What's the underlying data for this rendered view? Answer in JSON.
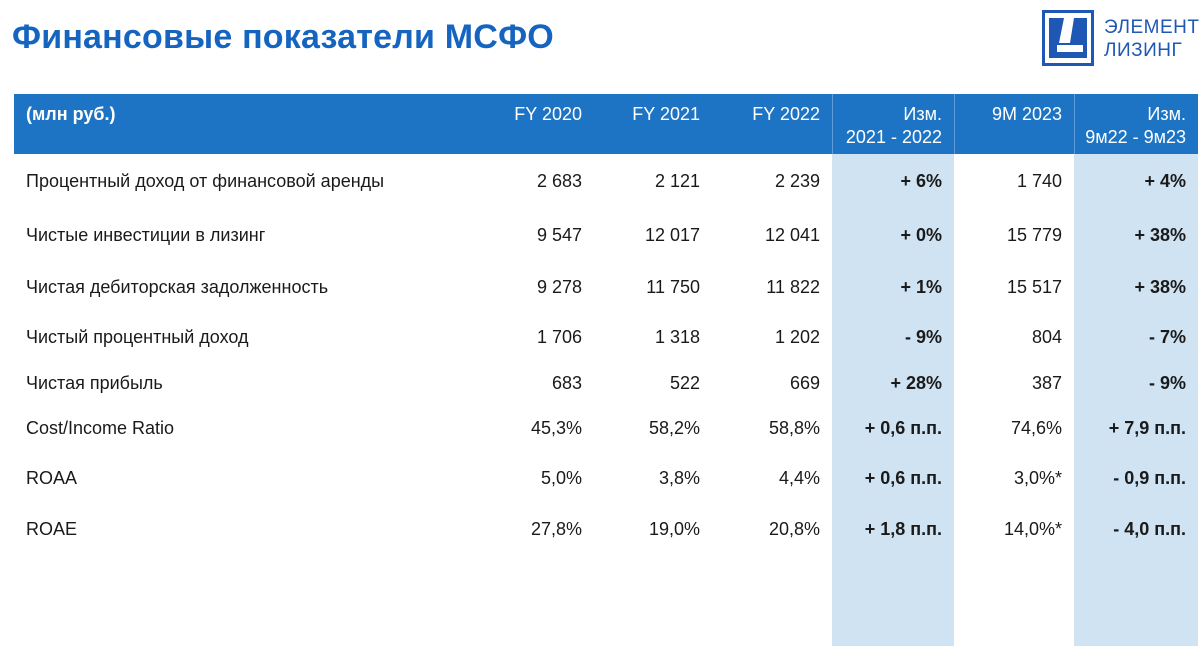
{
  "page": {
    "title": "Финансовые показатели МСФО"
  },
  "logo": {
    "line1": "ЭЛЕМЕНТ",
    "line2": "ЛИЗИНГ",
    "color": "#1f57b5"
  },
  "colors": {
    "title": "#1565c0",
    "header_bg": "#1e74c4",
    "highlight_col": "#cfe3f2"
  },
  "table": {
    "headers": {
      "units": "(млн руб.)",
      "fy2020": "FY 2020",
      "fy2021": "FY 2021",
      "fy2022": "FY 2022",
      "chg1_line1": "Изм.",
      "chg1_line2": "2021 - 2022",
      "m9_2023": "9M 2023",
      "chg2_line1": "Изм.",
      "chg2_line2": "9м22 - 9м23"
    },
    "rows": [
      {
        "label": "Процентный доход от финансовой аренды",
        "fy2020": "2 683",
        "fy2021": "2 121",
        "fy2022": "2 239",
        "chg1": "+ 6%",
        "m9_2023": "1 740",
        "chg2": "+ 4%"
      },
      {
        "label": "Чистые инвестиции в лизинг",
        "fy2020": "9 547",
        "fy2021": "12 017",
        "fy2022": "12 041",
        "chg1": "+ 0%",
        "m9_2023": "15 779",
        "chg2": "+ 38%"
      },
      {
        "label": "Чистая дебиторская задолженность",
        "fy2020": "9 278",
        "fy2021": "11 750",
        "fy2022": "11 822",
        "chg1": "+ 1%",
        "m9_2023": "15 517",
        "chg2": "+ 38%"
      },
      {
        "label": "Чистый процентный доход",
        "fy2020": "1 706",
        "fy2021": "1 318",
        "fy2022": "1 202",
        "chg1": "- 9%",
        "m9_2023": "804",
        "chg2": "- 7%"
      },
      {
        "label": "Чистая прибыль",
        "fy2020": "683",
        "fy2021": "522",
        "fy2022": "669",
        "chg1": "+ 28%",
        "m9_2023": "387",
        "chg2": "- 9%"
      },
      {
        "label": "Cost/Income Ratio",
        "fy2020": "45,3%",
        "fy2021": "58,2%",
        "fy2022": "58,8%",
        "chg1": "+ 0,6 п.п.",
        "m9_2023": "74,6%",
        "chg2": "+ 7,9 п.п."
      },
      {
        "label": "ROAA",
        "fy2020": "5,0%",
        "fy2021": "3,8%",
        "fy2022": "4,4%",
        "chg1": "+ 0,6 п.п.",
        "m9_2023": "3,0%*",
        "chg2": "- 0,9 п.п."
      },
      {
        "label": "ROAE",
        "fy2020": "27,8%",
        "fy2021": "19,0%",
        "fy2022": "20,8%",
        "chg1": "+ 1,8 п.п.",
        "m9_2023": "14,0%*",
        "chg2": "- 4,0 п.п."
      }
    ]
  }
}
